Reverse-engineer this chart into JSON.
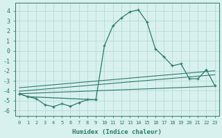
{
  "xlabel": "Humidex (Indice chaleur)",
  "x": [
    0,
    1,
    2,
    3,
    4,
    5,
    6,
    7,
    8,
    9,
    10,
    11,
    12,
    13,
    14,
    15,
    16,
    17,
    18,
    19,
    20,
    21,
    22,
    23
  ],
  "jagged_line": {
    "x": [
      0,
      1,
      2,
      3,
      4,
      5,
      6,
      7,
      8,
      9
    ],
    "y": [
      -4.3,
      -4.6,
      -4.8,
      -5.4,
      -5.6,
      -5.3,
      -5.55,
      -5.2,
      -4.9,
      -4.9
    ]
  },
  "main_line": {
    "x": [
      0,
      1,
      9,
      10,
      11,
      12,
      13,
      14,
      15,
      16,
      17,
      18,
      19,
      20,
      21,
      22,
      23
    ],
    "y": [
      -4.3,
      -4.6,
      -4.9,
      0.5,
      2.5,
      3.3,
      3.9,
      4.1,
      2.9,
      0.2,
      -0.6,
      -1.5,
      -1.3,
      -2.8,
      -2.8,
      -1.9,
      -3.5
    ]
  },
  "diag_upper": {
    "x": [
      0,
      23
    ],
    "y": [
      -3.7,
      -2.0
    ]
  },
  "diag_mid": {
    "x": [
      0,
      23
    ],
    "y": [
      -4.05,
      -2.4
    ]
  },
  "diag_lower": {
    "x": [
      0,
      23
    ],
    "y": [
      -4.3,
      -3.55
    ]
  },
  "color": "#2a7a6a",
  "bg_color": "#d8f0ee",
  "grid_color": "#b0d8d4",
  "ylim": [
    -6.5,
    4.8
  ],
  "yticks": [
    -6,
    -5,
    -4,
    -3,
    -2,
    -1,
    0,
    1,
    2,
    3,
    4
  ],
  "xlim": [
    -0.5,
    23.5
  ]
}
